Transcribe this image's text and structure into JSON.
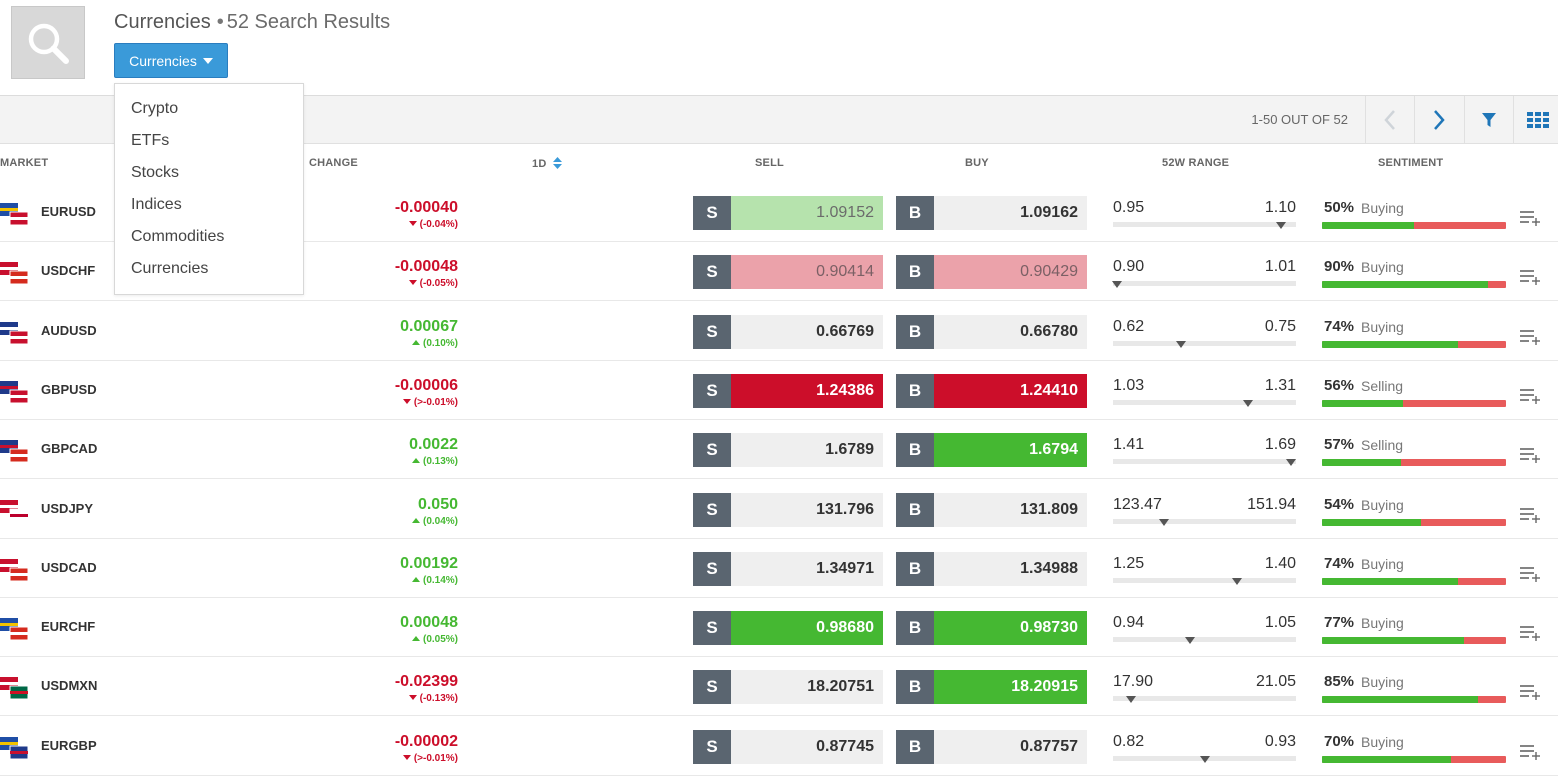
{
  "header": {
    "title": "Currencies",
    "separator": "•",
    "result_count": "52 Search Results",
    "filter_label": "Currencies"
  },
  "dropdown": {
    "items": [
      "Crypto",
      "ETFs",
      "Stocks",
      "Indices",
      "Commodities",
      "Currencies"
    ]
  },
  "pager": {
    "text": "1-50 OUT OF 52"
  },
  "columns": {
    "market": "MARKET",
    "change": "CHANGE",
    "period": "1D",
    "sell": "SELL",
    "buy": "BUY",
    "range": "52W RANGE",
    "sentiment": "SENTIMENT"
  },
  "trade_letters": {
    "sell": "S",
    "buy": "B"
  },
  "colors": {
    "accent": "#3a9ad9",
    "negative": "#cc0e2a",
    "positive": "#45b832",
    "sentiment_sell": "#e85b5b",
    "trade_label_bg": "#5a6570"
  },
  "icons": {
    "search": "magnifier-icon",
    "prev": "chevron-left-icon",
    "next": "chevron-right-icon",
    "filter": "filter-icon",
    "grid": "grid-view-icon",
    "row_menu": "list-add-icon"
  },
  "rows": [
    {
      "symbol": "EURUSD",
      "flags": [
        "EU",
        "US"
      ],
      "change": "-0.00040",
      "change_pct": "(-0.04%)",
      "dir": "down",
      "sell": "1.09152",
      "sell_style": "light-green",
      "buy": "1.09162",
      "buy_style": "",
      "range_low": "0.95",
      "range_high": "1.10",
      "range_pos": 0.92,
      "sent_pct": "50%",
      "sent_label": "Buying",
      "sent_fill": 0.5
    },
    {
      "symbol": "USDCHF",
      "flags": [
        "US",
        "CH"
      ],
      "change": "-0.00048",
      "change_pct": "(-0.05%)",
      "dir": "down",
      "sell": "0.90414",
      "sell_style": "light-red",
      "buy": "0.90429",
      "buy_style": "light-red",
      "range_low": "0.90",
      "range_high": "1.01",
      "range_pos": 0.02,
      "sent_pct": "90%",
      "sent_label": "Buying",
      "sent_fill": 0.9
    },
    {
      "symbol": "AUDUSD",
      "flags": [
        "AU",
        "US"
      ],
      "change": "0.00067",
      "change_pct": "(0.10%)",
      "dir": "up",
      "sell": "0.66769",
      "sell_style": "",
      "buy": "0.66780",
      "buy_style": "",
      "range_low": "0.62",
      "range_high": "0.75",
      "range_pos": 0.37,
      "sent_pct": "74%",
      "sent_label": "Buying",
      "sent_fill": 0.74
    },
    {
      "symbol": "GBPUSD",
      "flags": [
        "GB",
        "US"
      ],
      "change": "-0.00006",
      "change_pct": "(>-0.01%)",
      "dir": "down",
      "sell": "1.24386",
      "sell_style": "red",
      "buy": "1.24410",
      "buy_style": "red",
      "range_low": "1.03",
      "range_high": "1.31",
      "range_pos": 0.74,
      "sent_pct": "56%",
      "sent_label": "Selling",
      "sent_fill": 0.44
    },
    {
      "symbol": "GBPCAD",
      "flags": [
        "GB",
        "CA"
      ],
      "change": "0.0022",
      "change_pct": "(0.13%)",
      "dir": "up",
      "sell": "1.6789",
      "sell_style": "",
      "buy": "1.6794",
      "buy_style": "green",
      "range_low": "1.41",
      "range_high": "1.69",
      "range_pos": 0.97,
      "sent_pct": "57%",
      "sent_label": "Selling",
      "sent_fill": 0.43
    },
    {
      "symbol": "USDJPY",
      "flags": [
        "US",
        "JP"
      ],
      "change": "0.050",
      "change_pct": "(0.04%)",
      "dir": "up",
      "sell": "131.796",
      "sell_style": "",
      "buy": "131.809",
      "buy_style": "",
      "range_low": "123.47",
      "range_high": "151.94",
      "range_pos": 0.28,
      "sent_pct": "54%",
      "sent_label": "Buying",
      "sent_fill": 0.54
    },
    {
      "symbol": "USDCAD",
      "flags": [
        "US",
        "CA"
      ],
      "change": "0.00192",
      "change_pct": "(0.14%)",
      "dir": "up",
      "sell": "1.34971",
      "sell_style": "",
      "buy": "1.34988",
      "buy_style": "",
      "range_low": "1.25",
      "range_high": "1.40",
      "range_pos": 0.68,
      "sent_pct": "74%",
      "sent_label": "Buying",
      "sent_fill": 0.74
    },
    {
      "symbol": "EURCHF",
      "flags": [
        "EU",
        "CH"
      ],
      "change": "0.00048",
      "change_pct": "(0.05%)",
      "dir": "up",
      "sell": "0.98680",
      "sell_style": "green",
      "buy": "0.98730",
      "buy_style": "green",
      "range_low": "0.94",
      "range_high": "1.05",
      "range_pos": 0.42,
      "sent_pct": "77%",
      "sent_label": "Buying",
      "sent_fill": 0.77
    },
    {
      "symbol": "USDMXN",
      "flags": [
        "US",
        "MX"
      ],
      "change": "-0.02399",
      "change_pct": "(-0.13%)",
      "dir": "down",
      "sell": "18.20751",
      "sell_style": "",
      "buy": "18.20915",
      "buy_style": "green",
      "range_low": "17.90",
      "range_high": "21.05",
      "range_pos": 0.1,
      "sent_pct": "85%",
      "sent_label": "Buying",
      "sent_fill": 0.85
    },
    {
      "symbol": "EURGBP",
      "flags": [
        "EU",
        "GB"
      ],
      "change": "-0.00002",
      "change_pct": "(>-0.01%)",
      "dir": "down",
      "sell": "0.87745",
      "sell_style": "",
      "buy": "0.87757",
      "buy_style": "",
      "range_low": "0.82",
      "range_high": "0.93",
      "range_pos": 0.5,
      "sent_pct": "70%",
      "sent_label": "Buying",
      "sent_fill": 0.7
    }
  ]
}
